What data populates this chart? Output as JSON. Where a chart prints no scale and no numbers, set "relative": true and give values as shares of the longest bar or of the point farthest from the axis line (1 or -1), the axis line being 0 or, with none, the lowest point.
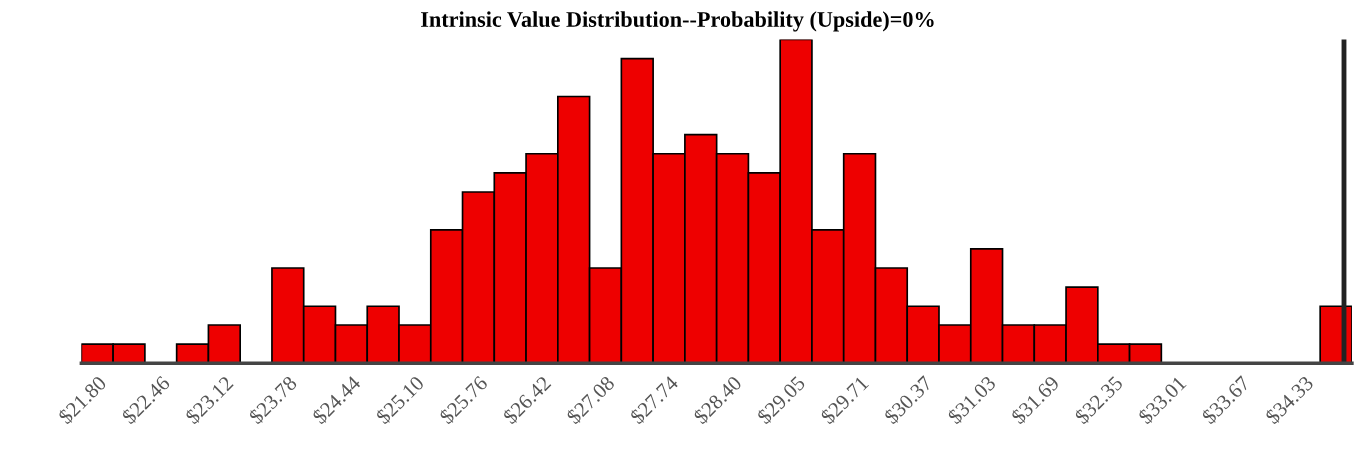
{
  "chart_data": {
    "type": "bar",
    "title": "Intrinsic Value Distribution--Probability (Upside)=0%",
    "relative": true,
    "color": "#ee0000",
    "categories": [
      "$21.80",
      null,
      "$22.46",
      null,
      "$23.12",
      null,
      "$23.78",
      null,
      "$24.44",
      null,
      "$25.10",
      null,
      "$25.76",
      null,
      "$26.42",
      null,
      "$27.08",
      null,
      "$27.74",
      null,
      "$28.40",
      null,
      "$29.05",
      null,
      "$29.71",
      null,
      "$30.37",
      null,
      "$31.03",
      null,
      "$31.69",
      null,
      "$32.35",
      null,
      "$33.01",
      null,
      "$33.67",
      null,
      "$34.33",
      null
    ],
    "values": [
      0.059,
      0.059,
      0,
      0.059,
      0.118,
      0,
      0.294,
      0.176,
      0.118,
      0.176,
      0.118,
      0.412,
      0.529,
      0.588,
      0.647,
      0.824,
      0.294,
      0.941,
      0.647,
      0.706,
      0.647,
      0.588,
      1,
      0.412,
      0.647,
      0.294,
      0.176,
      0.118,
      0.353,
      0.118,
      0.118,
      0.235,
      0.059,
      0.059,
      0,
      0,
      0,
      0,
      0,
      0.176
    ],
    "grid": false,
    "legend": false
  }
}
